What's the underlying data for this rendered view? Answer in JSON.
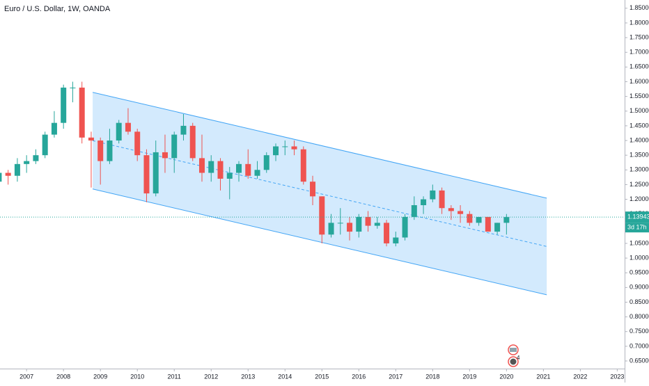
{
  "chart_data": {
    "type": "candlestick",
    "title": "Euro / U.S. Dollar, 1W, OANDA",
    "xlim": [
      2006.28,
      2023.2
    ],
    "xticks": [
      2007,
      2008,
      2009,
      2010,
      2011,
      2012,
      2013,
      2014,
      2015,
      2016,
      2017,
      2018,
      2019,
      2020,
      2021,
      2022,
      2023
    ],
    "ylim": [
      0.624,
      1.878
    ],
    "yticks": [
      {
        "value": 0.65,
        "label": "0.65000"
      },
      {
        "value": 0.7,
        "label": "0.70000"
      },
      {
        "value": 0.75,
        "label": "0.75000"
      },
      {
        "value": 0.8,
        "label": "0.80000"
      },
      {
        "value": 0.85,
        "label": "0.85000"
      },
      {
        "value": 0.9,
        "label": "0.90000"
      },
      {
        "value": 0.95,
        "label": "0.95000"
      },
      {
        "value": 1.0,
        "label": "1.00000"
      },
      {
        "value": 1.05,
        "label": "1.05000"
      },
      {
        "value": 1.1,
        "label": "1.10000"
      },
      {
        "value": 1.15,
        "label": "1.15000"
      },
      {
        "value": 1.2,
        "label": "1.20000"
      },
      {
        "value": 1.25,
        "label": "1.25000"
      },
      {
        "value": 1.3,
        "label": "1.30000"
      },
      {
        "value": 1.35,
        "label": "1.35000"
      },
      {
        "value": 1.4,
        "label": "1.40000"
      },
      {
        "value": 1.45,
        "label": "1.45000"
      },
      {
        "value": 1.5,
        "label": "1.50000"
      },
      {
        "value": 1.55,
        "label": "1.55000"
      },
      {
        "value": 1.6,
        "label": "1.60000"
      },
      {
        "value": 1.65,
        "label": "1.65000"
      },
      {
        "value": 1.7,
        "label": "1.70000"
      },
      {
        "value": 1.75,
        "label": "1.75000"
      },
      {
        "value": 1.8,
        "label": "1.80000"
      },
      {
        "value": 1.85,
        "label": "1.85000"
      }
    ],
    "grid": false,
    "up_color": "#26a69a",
    "down_color": "#ef5350",
    "candles": {
      "t": [
        2006.25,
        2006.5,
        2006.75,
        2007.0,
        2007.25,
        2007.5,
        2007.75,
        2008.0,
        2008.25,
        2008.5,
        2008.75,
        2009.0,
        2009.25,
        2009.5,
        2009.75,
        2010.0,
        2010.25,
        2010.5,
        2010.75,
        2011.0,
        2011.25,
        2011.5,
        2011.75,
        2012.0,
        2012.25,
        2012.5,
        2012.75,
        2013.0,
        2013.25,
        2013.5,
        2013.75,
        2014.0,
        2014.25,
        2014.5,
        2014.75,
        2015.0,
        2015.25,
        2015.5,
        2015.75,
        2016.0,
        2016.25,
        2016.5,
        2016.75,
        2017.0,
        2017.25,
        2017.5,
        2017.75,
        2018.0,
        2018.25,
        2018.5,
        2018.75,
        2019.0,
        2019.25,
        2019.5,
        2019.75,
        2020.0
      ],
      "open": [
        1.26,
        1.29,
        1.28,
        1.32,
        1.33,
        1.35,
        1.42,
        1.46,
        1.58,
        1.58,
        1.41,
        1.4,
        1.33,
        1.4,
        1.46,
        1.43,
        1.35,
        1.22,
        1.36,
        1.34,
        1.42,
        1.45,
        1.34,
        1.29,
        1.33,
        1.27,
        1.29,
        1.32,
        1.28,
        1.3,
        1.35,
        1.38,
        1.38,
        1.37,
        1.26,
        1.21,
        1.08,
        1.12,
        1.12,
        1.09,
        1.14,
        1.11,
        1.12,
        1.05,
        1.07,
        1.14,
        1.18,
        1.2,
        1.23,
        1.17,
        1.16,
        1.15,
        1.12,
        1.14,
        1.09,
        1.12
      ],
      "high": [
        1.3,
        1.3,
        1.34,
        1.35,
        1.37,
        1.43,
        1.5,
        1.59,
        1.6,
        1.6,
        1.43,
        1.41,
        1.44,
        1.47,
        1.51,
        1.44,
        1.37,
        1.4,
        1.42,
        1.43,
        1.49,
        1.46,
        1.42,
        1.35,
        1.34,
        1.31,
        1.33,
        1.37,
        1.33,
        1.36,
        1.39,
        1.4,
        1.4,
        1.38,
        1.28,
        1.21,
        1.15,
        1.17,
        1.14,
        1.15,
        1.16,
        1.14,
        1.13,
        1.09,
        1.15,
        1.21,
        1.21,
        1.25,
        1.24,
        1.18,
        1.18,
        1.16,
        1.14,
        1.14,
        1.12,
        1.15
      ],
      "low": [
        1.25,
        1.25,
        1.26,
        1.29,
        1.32,
        1.34,
        1.41,
        1.44,
        1.53,
        1.39,
        1.24,
        1.25,
        1.32,
        1.39,
        1.42,
        1.33,
        1.19,
        1.21,
        1.29,
        1.29,
        1.4,
        1.33,
        1.26,
        1.26,
        1.23,
        1.2,
        1.26,
        1.27,
        1.27,
        1.29,
        1.33,
        1.35,
        1.35,
        1.25,
        1.18,
        1.05,
        1.07,
        1.08,
        1.06,
        1.07,
        1.09,
        1.1,
        1.04,
        1.04,
        1.06,
        1.13,
        1.15,
        1.19,
        1.15,
        1.13,
        1.12,
        1.11,
        1.11,
        1.09,
        1.08,
        1.08
      ],
      "close": [
        1.29,
        1.28,
        1.32,
        1.33,
        1.35,
        1.42,
        1.46,
        1.58,
        1.58,
        1.41,
        1.4,
        1.33,
        1.4,
        1.46,
        1.43,
        1.35,
        1.22,
        1.36,
        1.34,
        1.42,
        1.45,
        1.34,
        1.29,
        1.33,
        1.27,
        1.29,
        1.32,
        1.28,
        1.3,
        1.35,
        1.38,
        1.38,
        1.37,
        1.26,
        1.21,
        1.08,
        1.12,
        1.12,
        1.09,
        1.14,
        1.11,
        1.12,
        1.05,
        1.07,
        1.14,
        1.18,
        1.2,
        1.23,
        1.17,
        1.16,
        1.15,
        1.12,
        1.14,
        1.09,
        1.12,
        1.13943
      ]
    },
    "channel": {
      "x": [
        2008.79,
        2021.09
      ],
      "upper": [
        1.564,
        1.204
      ],
      "lower": [
        1.235,
        0.875
      ]
    },
    "last_price": 1.13943,
    "countdown": "3d 17h",
    "events_badge": "4"
  }
}
